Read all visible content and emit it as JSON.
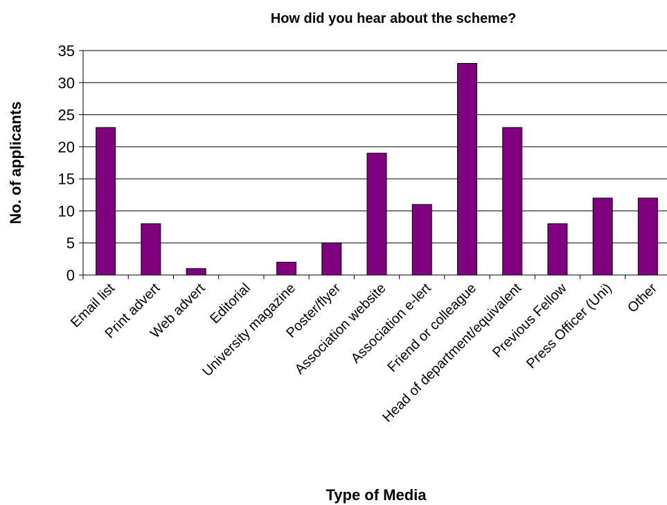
{
  "chart_data": {
    "type": "bar",
    "title": "How did you hear about the scheme?",
    "xlabel": "Type of Media",
    "ylabel": "No. of applicants",
    "categories": [
      "Email list",
      "Print advert",
      "Web advert",
      "Editorial",
      "University magazine",
      "Poster/flyer",
      "Association website",
      "Association e-lert",
      "Friend or colleague",
      "Head of department/equivalent",
      "Previous Fellow",
      "Press Officer (Uni)",
      "Other"
    ],
    "values": [
      23,
      8,
      1,
      0,
      2,
      5,
      19,
      11,
      33,
      23,
      8,
      12,
      12
    ],
    "ylim": [
      0,
      35
    ],
    "yticks": [
      0,
      5,
      10,
      15,
      20,
      25,
      30,
      35
    ],
    "grid": true,
    "legend": "none",
    "bar_color": "#800080"
  }
}
